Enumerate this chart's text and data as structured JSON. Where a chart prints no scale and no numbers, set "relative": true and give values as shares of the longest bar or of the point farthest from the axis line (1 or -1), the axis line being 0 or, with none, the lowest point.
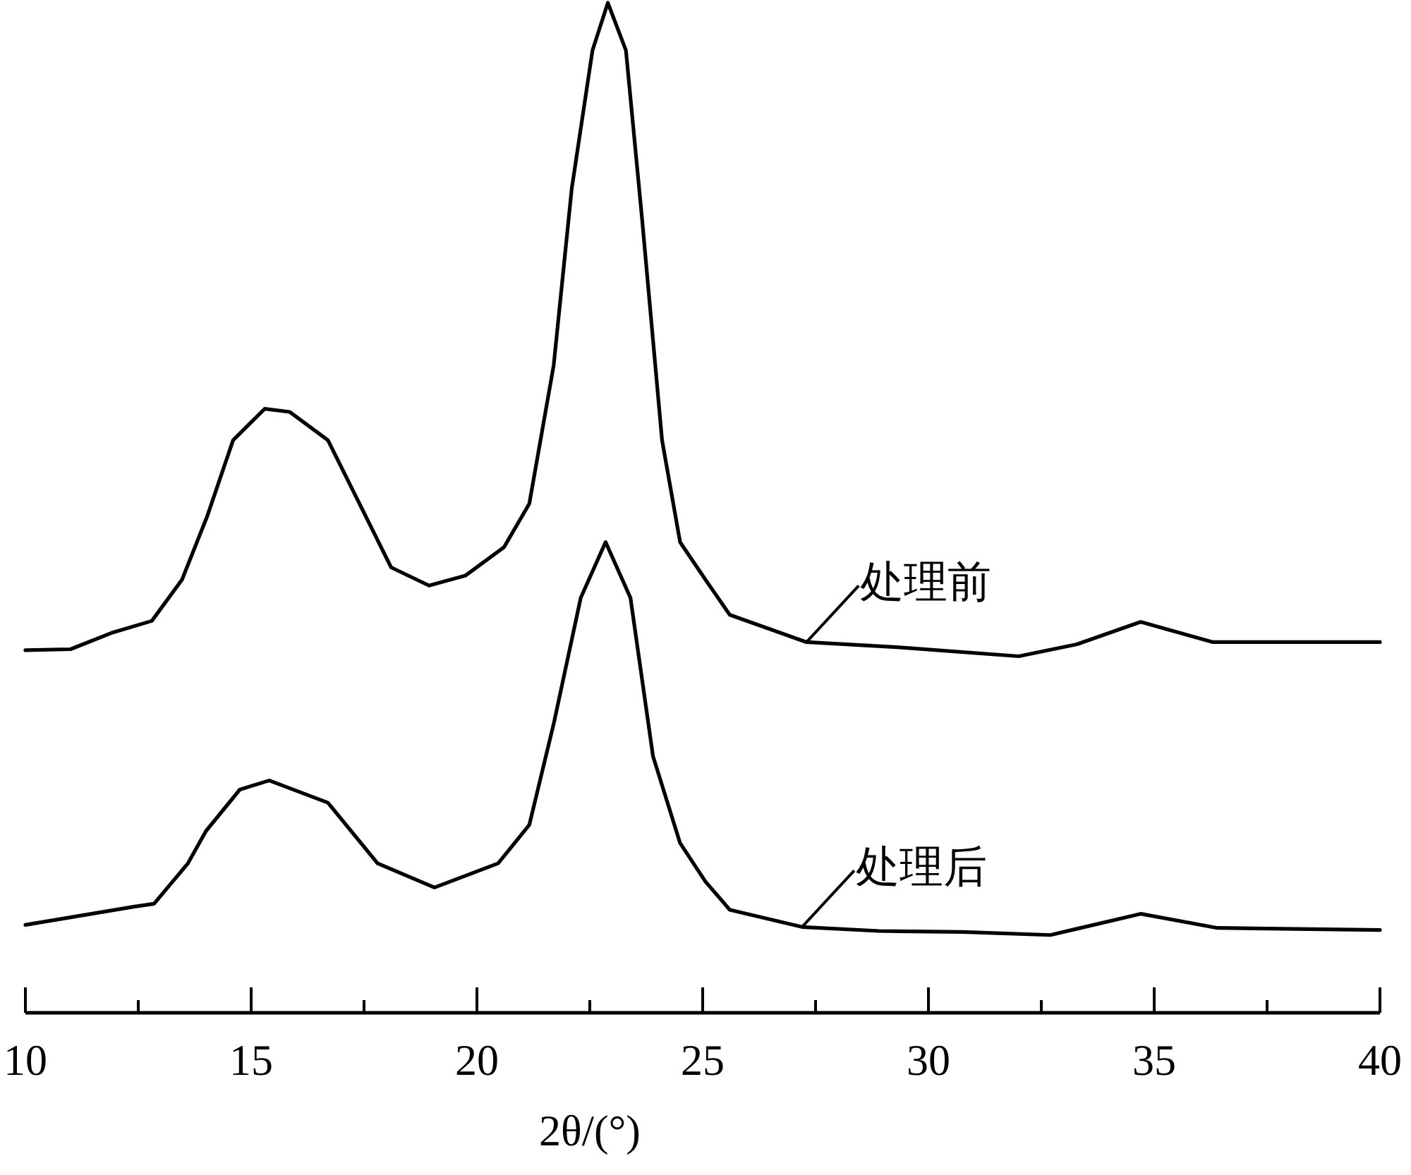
{
  "chart_data": {
    "type": "line",
    "relative": true,
    "xlabel": "2θ/(°)",
    "xlim": [
      10,
      40
    ],
    "xticks": [
      10,
      {
        "value": 12.5,
        "label": null
      },
      15,
      {
        "value": 17.5,
        "label": null
      },
      20,
      {
        "value": 22.5,
        "label": null
      },
      25,
      {
        "value": 27.5,
        "label": null
      },
      30,
      {
        "value": 32.5,
        "label": null
      },
      35,
      {
        "value": 37.5,
        "label": null
      },
      40
    ],
    "tick_labels": "x",
    "grid": false,
    "marker": "none",
    "line_style": "solid",
    "series": [
      {
        "name": "处理前",
        "color": "#000000",
        "x": [
          10,
          11,
          11.9,
          12.8,
          13.47,
          14.03,
          14.6,
          15.3,
          15.85,
          16.7,
          17.4,
          18.1,
          18.94,
          19.75,
          20.6,
          21.16,
          21.7,
          22.1,
          22.56,
          22.9,
          23.3,
          23.66,
          24.1,
          24.5,
          25.06,
          25.6,
          27.3,
          29.3,
          32.0,
          33.3,
          34.7,
          36.3,
          40
        ],
        "values": [
          0.359,
          0.36,
          0.376,
          0.388,
          0.429,
          0.492,
          0.567,
          0.598,
          0.595,
          0.567,
          0.504,
          0.441,
          0.423,
          0.433,
          0.461,
          0.504,
          0.641,
          0.816,
          0.953,
          1.0,
          0.953,
          0.785,
          0.567,
          0.466,
          0.429,
          0.394,
          0.367,
          0.362,
          0.353,
          0.365,
          0.387,
          0.367,
          0.367
        ]
      },
      {
        "name": "处理后",
        "color": "#000000",
        "x": [
          10,
          12.4,
          12.85,
          13.6,
          14.0,
          14.75,
          15.4,
          16.7,
          17.8,
          19.06,
          20.47,
          21.16,
          21.7,
          22.3,
          22.85,
          23.4,
          23.9,
          24.5,
          25.06,
          25.6,
          27.2,
          28.9,
          30.75,
          32.7,
          34.7,
          36.4,
          40
        ],
        "values": [
          0.087,
          0.105,
          0.108,
          0.148,
          0.18,
          0.221,
          0.23,
          0.208,
          0.148,
          0.124,
          0.148,
          0.186,
          0.286,
          0.411,
          0.466,
          0.411,
          0.254,
          0.168,
          0.13,
          0.102,
          0.085,
          0.081,
          0.08,
          0.077,
          0.098,
          0.084,
          0.082
        ]
      }
    ]
  }
}
